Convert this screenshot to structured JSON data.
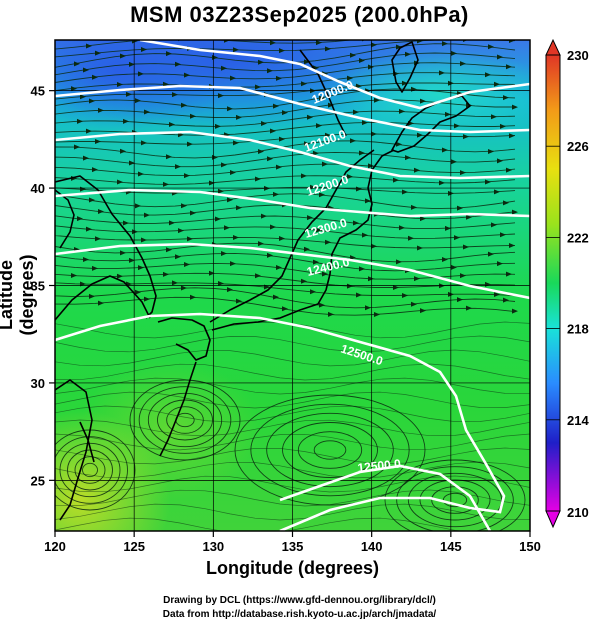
{
  "title": "MSM 03Z23Sep2025 (200.0hPa)",
  "axes": {
    "xlabel": "Longitude (degrees)",
    "ylabel": "Latitude  (degrees)",
    "xticks": [
      "120",
      "125",
      "130",
      "135",
      "140",
      "145",
      "150"
    ],
    "yticks": [
      "25",
      "30",
      "35",
      "40",
      "45"
    ]
  },
  "chart_data": {
    "type": "heatmap",
    "variable": "temperature shading with streamlines and geopotential height contours",
    "xlim": [
      120,
      150
    ],
    "ylim": [
      22.4,
      47.6
    ],
    "x_ticks": [
      120,
      125,
      130,
      135,
      140,
      145,
      150
    ],
    "y_ticks": [
      25,
      30,
      35,
      40,
      45
    ],
    "colorbar": {
      "ticks": [
        "230",
        "226",
        "222",
        "218",
        "214",
        "210"
      ],
      "range": [
        210,
        230
      ],
      "colors": [
        "#e400e4",
        "#1f1fc8",
        "#2a8cff",
        "#19e2d9",
        "#19d95a",
        "#9be21c",
        "#e8e010",
        "#f29a18",
        "#e03626"
      ]
    },
    "contours": [
      {
        "label": "12000.0",
        "lat_at_140E": 45.3
      },
      {
        "label": "12100.0",
        "lat_at_140E": 42.2
      },
      {
        "label": "12200.0",
        "lat_at_140E": 40.0
      },
      {
        "label": "12300.0",
        "lat_at_140E": 38.4
      },
      {
        "label": "12400.0",
        "lat_at_140E": 36.0
      },
      {
        "label": "12500.0",
        "lat_at_140E": 32.0
      },
      {
        "label": "12500.0",
        "lat_at_140E": 25.5
      }
    ],
    "grid": true
  },
  "credits": {
    "line1": "Drawing by DCL (https://www.gfd-dennou.org/library/dcl/)",
    "line2": "Data from http://database.rish.kyoto-u.ac.jp/arch/jmadata/"
  },
  "colors": {
    "cold_blue": "#2a5fe6",
    "cyan": "#16c8cc",
    "green": "#1ed84a",
    "yellow_green": "#9ad834",
    "contour": "#ffffff",
    "coastline": "#000000"
  }
}
